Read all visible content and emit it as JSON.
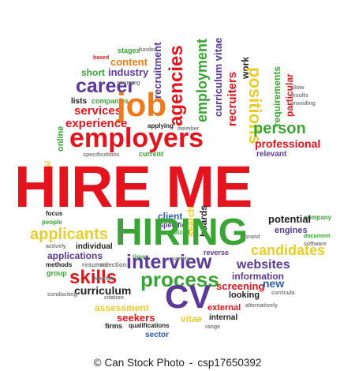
{
  "cloud": {
    "hire_me": "HIRE ME",
    "hiring": "HIRING",
    "cv": "CV",
    "employers": "employers",
    "job": "job",
    "career": "career",
    "interview": "interview",
    "process": "process",
    "agencies": "agencies",
    "employment": "employment",
    "positions": "positions",
    "person": "person",
    "professional": "professional",
    "candidates": "candidates",
    "websites": "websites",
    "skills": "skills",
    "applicants": "applicants",
    "curriculum": "curriculum",
    "experience": "experience",
    "services": "services",
    "industry": "industry",
    "short": "short",
    "content": "content",
    "recruitment": "recruitment",
    "curriculum_vitae": "curriculum vitae",
    "recruiters": "recruiters",
    "requirements": "requirements",
    "particular": "particular",
    "work": "work",
    "potential": "potential",
    "engines": "engines",
    "information": "information",
    "screening": "screening",
    "new": "new",
    "looking": "looking",
    "assessment": "assessment",
    "seekers": "seekers",
    "vitae": "vitae",
    "sector": "sector",
    "internal": "internal",
    "external": "external",
    "applications": "applications",
    "individual": "individual",
    "methods": "methods",
    "group": "group",
    "resumes": "resumes",
    "selection": "selection",
    "firms": "firms",
    "qualifications": "qualifications",
    "client": "client",
    "specific": "specific",
    "specialized": "specialized",
    "search": "search",
    "boards": "boards",
    "current": "current",
    "relevant": "relevant",
    "applying": "applying",
    "member": "member",
    "lists": "lists",
    "companies": "companies",
    "stages": "stages",
    "online": "online",
    "traditional": "traditional",
    "focus": "focus",
    "people": "people",
    "contact": "contact",
    "reverse": "reverse",
    "time": "time",
    "manner": "manner",
    "range": "range",
    "company": "company",
    "document": "document",
    "software": "software",
    "variety": "variety",
    "based": "based",
    "funded": "funded",
    "results": "results",
    "providing": "providing",
    "allow": "allow",
    "alternatively": "alternatively",
    "curricula": "curricula",
    "citation": "citation",
    "brand": "brand",
    "specifications": "specifications",
    "actively": "actively",
    "sourcing": "sourcing",
    "conducting": "conducting"
  },
  "credit": {
    "copyright_symbol": "©",
    "agency": "Can Stock Photo",
    "separator": "-",
    "image_id": "csp17650392"
  },
  "colors": {
    "red": "#e3141d",
    "green": "#3aa535",
    "purple": "#5a3a96",
    "orange": "#f07a1a",
    "yellow": "#e9cd2a",
    "olive": "#b7b41e",
    "blue": "#2c5fa8",
    "brown": "#8b5a2b",
    "black": "#1f1f1f",
    "gray": "#7a7a7a"
  }
}
